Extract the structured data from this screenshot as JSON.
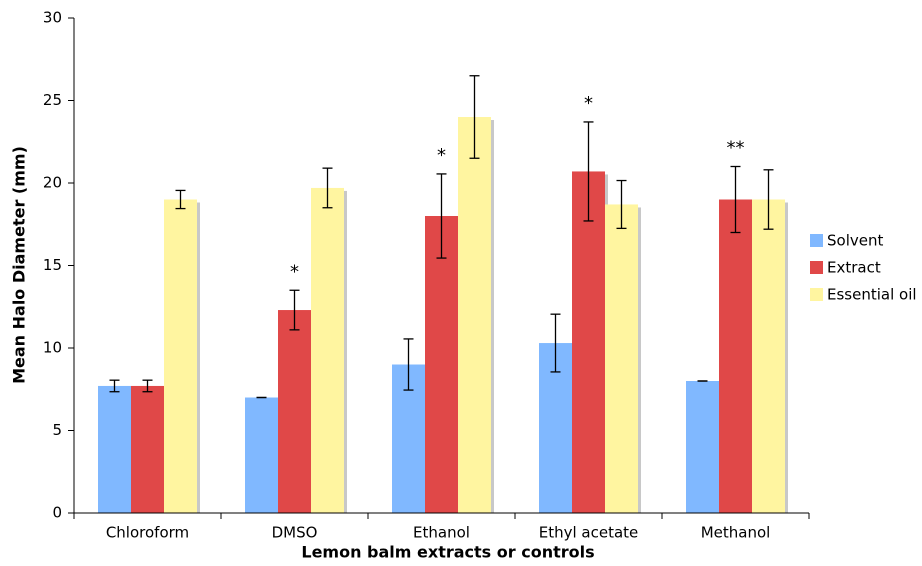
{
  "chart_data": {
    "type": "bar",
    "x_label": "Lemon balm extracts or controls",
    "y_label": "Mean Halo Diameter (mm)",
    "categories": [
      "Chloroform",
      "DMSO",
      "Ethanol",
      "Ethyl acetate",
      "Methanol"
    ],
    "series": [
      {
        "name": "Solvent",
        "color": "#80b8ff",
        "values": [
          7.7,
          7.0,
          9.0,
          10.3,
          8.0
        ],
        "errors": [
          0.35,
          0,
          1.55,
          1.75,
          0
        ]
      },
      {
        "name": "Extract",
        "color": "#e04848",
        "values": [
          7.7,
          12.3,
          18.0,
          20.7,
          19.0
        ],
        "errors": [
          0.35,
          1.2,
          2.55,
          3.0,
          2.0
        ]
      },
      {
        "name": "Essential oil",
        "color": "#fff5a0",
        "values": [
          19.0,
          19.7,
          24.0,
          18.7,
          19.0
        ],
        "errors": [
          0.55,
          1.2,
          2.5,
          1.45,
          1.8
        ]
      }
    ],
    "annotations": [
      {
        "category": "DMSO",
        "series": "Extract",
        "text": "*"
      },
      {
        "category": "Ethanol",
        "series": "Extract",
        "text": "*"
      },
      {
        "category": "Ethyl acetate",
        "series": "Extract",
        "text": "*"
      },
      {
        "category": "Methanol",
        "series": "Extract",
        "text": "**"
      }
    ],
    "ylim": [
      0,
      30
    ],
    "yticks": [
      0,
      5,
      10,
      15,
      20,
      25,
      30
    ],
    "legend": "right"
  }
}
